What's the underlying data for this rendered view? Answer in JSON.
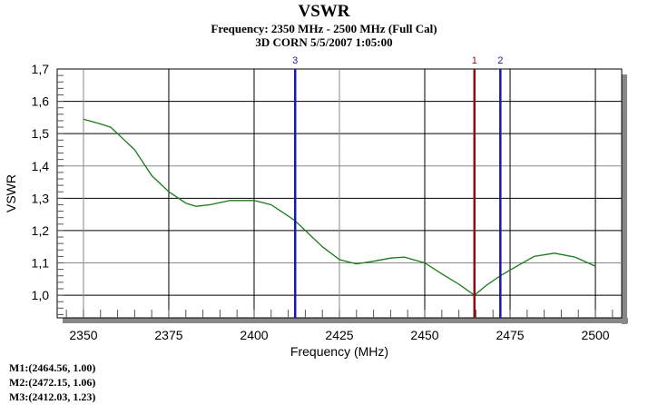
{
  "chart_data": {
    "type": "line",
    "title": "VSWR",
    "subtitle": "Frequency: 2350 MHz - 2500 MHz (Full Cal)",
    "subtitle2": "3D CORN 5/5/2007 1:05:00",
    "xlabel": "Frequency (MHz)",
    "ylabel": "VSWR",
    "xlim": [
      2342.3,
      2507.7
    ],
    "ylim": [
      0.93,
      1.7
    ],
    "xticks": [
      2350,
      2375,
      2400,
      2425,
      2450,
      2475,
      2500
    ],
    "xtick_labels": [
      "2350",
      "2375",
      "2400",
      "2425",
      "2450",
      "2475",
      "2500"
    ],
    "yticks": [
      1.0,
      1.1,
      1.2,
      1.3,
      1.4,
      1.5,
      1.6,
      1.7
    ],
    "ytick_labels": [
      "1,0",
      "1,1",
      "1,2",
      "1,3",
      "1,4",
      "1,5",
      "1,6",
      "1,7"
    ],
    "grid": true,
    "series": [
      {
        "name": "VSWR",
        "color": "#1a7a1a",
        "x": [
          2350,
          2355,
          2358,
          2360,
          2365,
          2370,
          2375,
          2380,
          2383,
          2387,
          2393,
          2400,
          2405,
          2410,
          2412.03,
          2420,
          2425,
          2430,
          2435,
          2440,
          2444,
          2450,
          2455,
          2460,
          2464.56,
          2468,
          2472.15,
          2477,
          2482,
          2488,
          2494,
          2500
        ],
        "y": [
          1.545,
          1.53,
          1.52,
          1.5,
          1.45,
          1.37,
          1.32,
          1.285,
          1.275,
          1.28,
          1.293,
          1.293,
          1.28,
          1.245,
          1.23,
          1.15,
          1.11,
          1.097,
          1.105,
          1.115,
          1.118,
          1.1,
          1.066,
          1.034,
          1.0,
          1.03,
          1.06,
          1.09,
          1.12,
          1.13,
          1.118,
          1.09
        ]
      }
    ],
    "markers": [
      {
        "label": "1",
        "x": 2464.56,
        "y": 1.0,
        "color": "#8b1010",
        "readout": "M1:(2464.56,  1.00)"
      },
      {
        "label": "2",
        "x": 2472.15,
        "y": 1.06,
        "color": "#1a1aa8",
        "readout": "M2:(2472.15,  1.06)"
      },
      {
        "label": "3",
        "x": 2412.03,
        "y": 1.23,
        "color": "#1a1aa8",
        "readout": "M3:(2412.03,  1.23)"
      }
    ]
  }
}
